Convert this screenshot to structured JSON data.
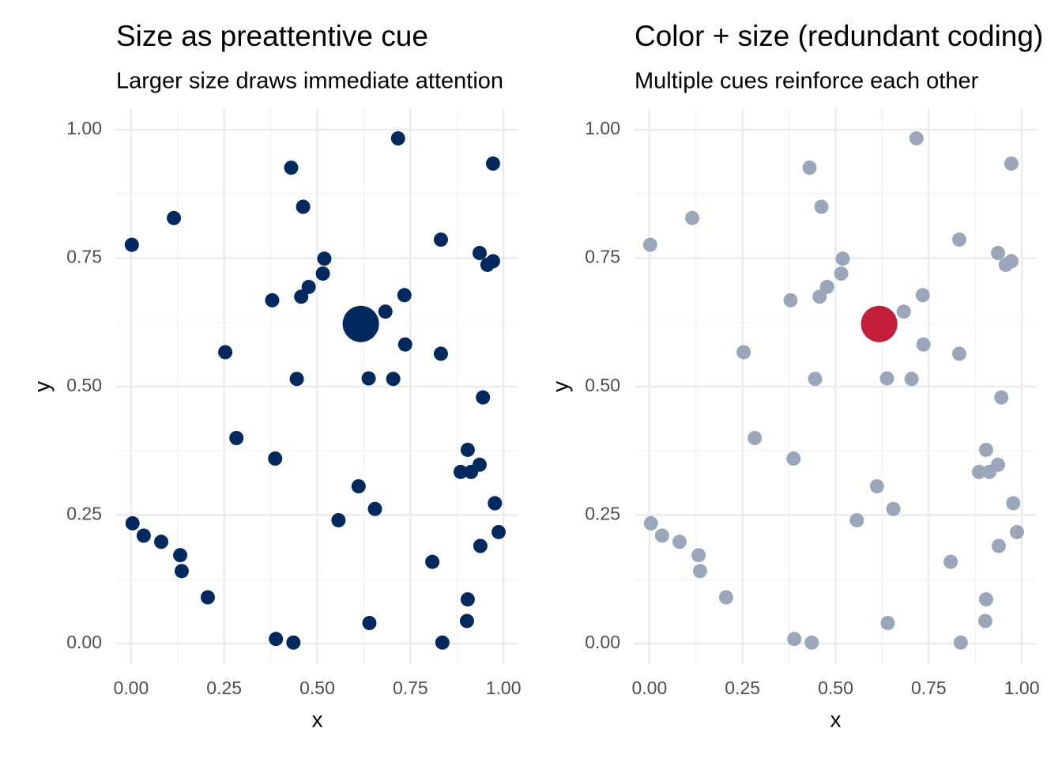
{
  "chart_data": [
    {
      "type": "scatter",
      "title": "Size as preattentive cue",
      "subtitle": "Larger size draws immediate attention",
      "xlabel": "x",
      "ylabel": "y",
      "xlim": [
        -0.04,
        1.04
      ],
      "ylim": [
        -0.04,
        1.04
      ],
      "xticks": [
        {
          "value": 0,
          "label": "0.00"
        },
        {
          "value": 0.25,
          "label": "0.25"
        },
        {
          "value": 0.5,
          "label": "0.50"
        },
        {
          "value": 0.75,
          "label": "0.75"
        },
        {
          "value": 1,
          "label": "1.00"
        }
      ],
      "yticks": [
        {
          "value": 0,
          "label": "0.00"
        },
        {
          "value": 0.25,
          "label": "0.25"
        },
        {
          "value": 0.5,
          "label": "0.50"
        },
        {
          "value": 0.75,
          "label": "0.75"
        },
        {
          "value": 1,
          "label": "1.00"
        }
      ],
      "grid": true,
      "series": [
        {
          "color": "#002a5f",
          "x": [
            0.002,
            0.115,
            0.43,
            0.717,
            0.972,
            0.462,
            0.832,
            0.936,
            0.972,
            0.957,
            0.519,
            0.515,
            0.477,
            0.457,
            0.379,
            0.734,
            0.683,
            0.736,
            0.253,
            0.832,
            0.445,
            0.638,
            0.704,
            0.945,
            0.283,
            0.904,
            0.387,
            0.936,
            0.885,
            0.913,
            0.611,
            0.655,
            0.557,
            0.977,
            0.004,
            0.034,
            0.081,
            0.132,
            0.136,
            0.987,
            0.938,
            0.809,
            0.206,
            0.904,
            0.902,
            0.389,
            0.436,
            0.64,
            0.836
          ],
          "y": [
            0.776,
            0.828,
            0.926,
            0.983,
            0.934,
            0.85,
            0.786,
            0.76,
            0.744,
            0.737,
            0.749,
            0.72,
            0.694,
            0.675,
            0.668,
            0.678,
            0.646,
            0.582,
            0.567,
            0.564,
            0.515,
            0.516,
            0.515,
            0.479,
            0.4,
            0.377,
            0.36,
            0.348,
            0.334,
            0.334,
            0.306,
            0.262,
            0.24,
            0.273,
            0.234,
            0.21,
            0.198,
            0.172,
            0.141,
            0.217,
            0.19,
            0.159,
            0.09,
            0.086,
            0.044,
            0.009,
            0.002,
            0.04,
            0.002
          ]
        },
        {
          "color": "#002a5f",
          "x": [
            0.617
          ],
          "y": [
            0.622
          ]
        }
      ]
    },
    {
      "type": "scatter",
      "title": "Color + size (redundant coding)",
      "subtitle": "Multiple cues reinforce each other",
      "xlabel": "x",
      "ylabel": "y",
      "xlim": [
        -0.04,
        1.04
      ],
      "ylim": [
        -0.04,
        1.04
      ],
      "xticks": [
        {
          "value": 0,
          "label": "0.00"
        },
        {
          "value": 0.25,
          "label": "0.25"
        },
        {
          "value": 0.5,
          "label": "0.50"
        },
        {
          "value": 0.75,
          "label": "0.75"
        },
        {
          "value": 1,
          "label": "1.00"
        }
      ],
      "yticks": [
        {
          "value": 0,
          "label": "0.00"
        },
        {
          "value": 0.25,
          "label": "0.25"
        },
        {
          "value": 0.5,
          "label": "0.50"
        },
        {
          "value": 0.75,
          "label": "0.75"
        },
        {
          "value": 1,
          "label": "1.00"
        }
      ],
      "grid": true,
      "series": [
        {
          "color": "#9aa6b9",
          "x": [
            0.002,
            0.115,
            0.43,
            0.717,
            0.972,
            0.462,
            0.832,
            0.936,
            0.972,
            0.957,
            0.519,
            0.515,
            0.477,
            0.457,
            0.379,
            0.734,
            0.683,
            0.736,
            0.253,
            0.832,
            0.445,
            0.638,
            0.704,
            0.945,
            0.283,
            0.904,
            0.387,
            0.936,
            0.885,
            0.913,
            0.611,
            0.655,
            0.557,
            0.977,
            0.004,
            0.034,
            0.081,
            0.132,
            0.136,
            0.987,
            0.938,
            0.809,
            0.206,
            0.904,
            0.902,
            0.389,
            0.436,
            0.64,
            0.836
          ],
          "y": [
            0.776,
            0.828,
            0.926,
            0.983,
            0.934,
            0.85,
            0.786,
            0.76,
            0.744,
            0.737,
            0.749,
            0.72,
            0.694,
            0.675,
            0.668,
            0.678,
            0.646,
            0.582,
            0.567,
            0.564,
            0.515,
            0.516,
            0.515,
            0.479,
            0.4,
            0.377,
            0.36,
            0.348,
            0.334,
            0.334,
            0.306,
            0.262,
            0.24,
            0.273,
            0.234,
            0.21,
            0.198,
            0.172,
            0.141,
            0.217,
            0.19,
            0.159,
            0.09,
            0.086,
            0.044,
            0.009,
            0.002,
            0.04,
            0.002
          ]
        },
        {
          "color": "#c41e3a",
          "x": [
            0.617
          ],
          "y": [
            0.622
          ]
        }
      ]
    }
  ]
}
